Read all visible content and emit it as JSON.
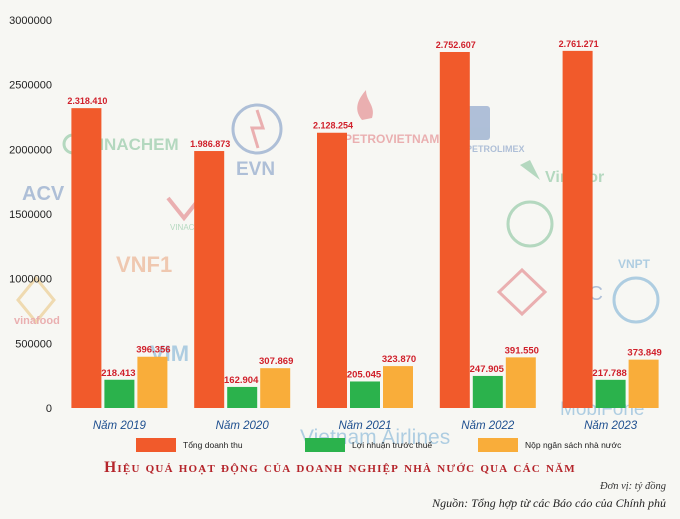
{
  "chart_data": {
    "type": "bar",
    "title": "Hiệu quả hoạt động của doanh nghiệp nhà nước qua các năm",
    "unit_note": "Đơn vị: tỷ đồng",
    "source": "Nguồn: Tổng hợp từ các Báo cáo của Chính phủ",
    "categories": [
      "Năm 2019",
      "Năm 2020",
      "Năm 2021",
      "Năm 2022",
      "Năm 2023"
    ],
    "ylim": [
      0,
      3000000
    ],
    "yticks": [
      "0",
      "500000",
      "1000000",
      "1500000",
      "2000000",
      "2500000",
      "3000000"
    ],
    "ytick_values": [
      0,
      500000,
      1000000,
      1500000,
      2000000,
      2500000,
      3000000
    ],
    "series": [
      {
        "name": "Tổng doanh thu",
        "color": "#f15a2b",
        "values": [
          2318410,
          1986873,
          2128254,
          2752607,
          2761271
        ],
        "labels": [
          "2.318.410",
          "1.986.873",
          "2.128.254",
          "2.752.607",
          "2.761.271"
        ]
      },
      {
        "name": "Lợi nhuận trước thuế",
        "color": "#2bb24c",
        "values": [
          218413,
          162904,
          205045,
          247905,
          217788
        ],
        "labels": [
          "218.413",
          "162.904",
          "205.045",
          "247.905",
          "217.788"
        ]
      },
      {
        "name": "Nộp ngân sách nhà nước",
        "color": "#f9ad3a",
        "values": [
          396356,
          307869,
          323870,
          391550,
          373849
        ],
        "labels": [
          "396.356",
          "307.869",
          "323.870",
          "391.550",
          "373.849"
        ]
      }
    ],
    "label_color": "#d0202b",
    "grid": false,
    "legend_position": "bottom"
  },
  "watermark_logos": [
    "VINACHEM",
    "EVN",
    "PETROVIETNAM",
    "PETROLIMEX",
    "VinaFor",
    "ACV",
    "VINACOMIN",
    "VNF1",
    "vinafood",
    "VIM",
    "Vietnam Airlines",
    "MobiFone",
    "VNPT",
    "IC"
  ]
}
